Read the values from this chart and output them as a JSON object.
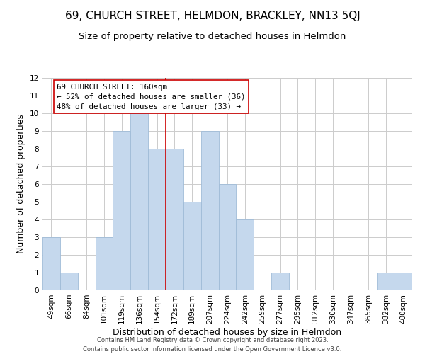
{
  "title": "69, CHURCH STREET, HELMDON, BRACKLEY, NN13 5QJ",
  "subtitle": "Size of property relative to detached houses in Helmdon",
  "xlabel": "Distribution of detached houses by size in Helmdon",
  "ylabel": "Number of detached properties",
  "footer_line1": "Contains HM Land Registry data © Crown copyright and database right 2023.",
  "footer_line2": "Contains public sector information licensed under the Open Government Licence v3.0.",
  "bar_labels": [
    "49sqm",
    "66sqm",
    "84sqm",
    "101sqm",
    "119sqm",
    "136sqm",
    "154sqm",
    "172sqm",
    "189sqm",
    "207sqm",
    "224sqm",
    "242sqm",
    "259sqm",
    "277sqm",
    "295sqm",
    "312sqm",
    "330sqm",
    "347sqm",
    "365sqm",
    "382sqm",
    "400sqm"
  ],
  "bar_values": [
    3,
    1,
    0,
    3,
    9,
    10,
    8,
    8,
    5,
    9,
    6,
    4,
    0,
    1,
    0,
    0,
    0,
    0,
    0,
    1,
    1
  ],
  "bar_color": "#c5d8ed",
  "bar_edge_color": "#a0bcd8",
  "vline_x_index": 6.5,
  "vline_color": "#cc0000",
  "annotation_title": "69 CHURCH STREET: 160sqm",
  "annotation_line1": "← 52% of detached houses are smaller (36)",
  "annotation_line2": "48% of detached houses are larger (33) →",
  "annotation_box_color": "#ffffff",
  "annotation_box_edge": "#cc0000",
  "ylim": [
    0,
    12
  ],
  "yticks": [
    0,
    1,
    2,
    3,
    4,
    5,
    6,
    7,
    8,
    9,
    10,
    11,
    12
  ],
  "background_color": "#ffffff",
  "grid_color": "#cccccc",
  "title_fontsize": 11,
  "subtitle_fontsize": 9.5,
  "axis_label_fontsize": 9,
  "tick_fontsize": 7.5,
  "annotation_fontsize": 7.8,
  "footer_fontsize": 6.0
}
